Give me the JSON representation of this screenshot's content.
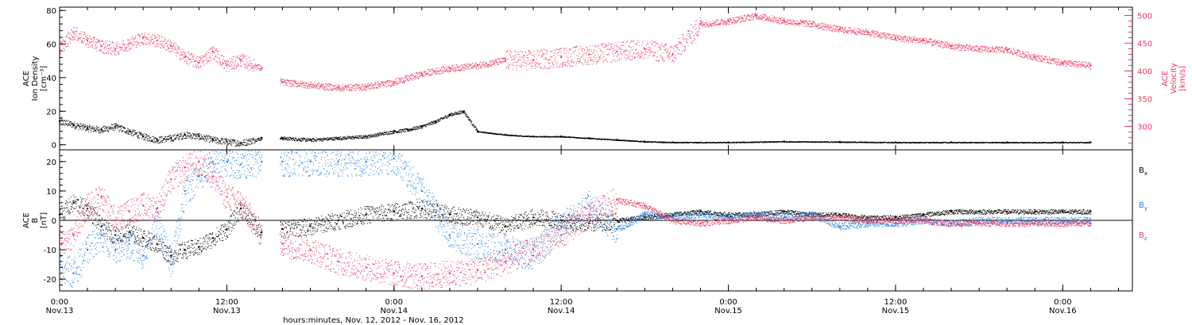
{
  "colors": {
    "black": "#000000",
    "blue": "#1f7fe0",
    "pink": "#e8385f",
    "axis": "#000000"
  },
  "panel1": {
    "ylabel_lines": [
      "ACE",
      "Ion Density",
      "[cm⁻³]"
    ],
    "right_ylabel_lines": [
      "ACE",
      "Velocity",
      "[km/s]"
    ],
    "left_ticks": [
      "0",
      "20",
      "40",
      "60",
      "80"
    ],
    "right_ticks": [
      "300",
      "350",
      "400",
      "450",
      "500"
    ]
  },
  "panel2": {
    "ylabel_lines": [
      "ACE",
      "B",
      "[nT]"
    ],
    "ticks": [
      "-20",
      "-10",
      "0",
      "10",
      "20"
    ],
    "legend": [
      {
        "name": "Bx",
        "base": "B",
        "sub": "x",
        "color": "#000000"
      },
      {
        "name": "By",
        "base": "B",
        "sub": "y",
        "color": "#1f7fe0"
      },
      {
        "name": "Bz",
        "base": "B",
        "sub": "z",
        "color": "#e8385f"
      }
    ]
  },
  "xaxis": {
    "ticks": [
      {
        "time": "0:00",
        "date": "Nov.13"
      },
      {
        "time": "12:00",
        "date": "Nov.13"
      },
      {
        "time": "0:00",
        "date": "Nov.14"
      },
      {
        "time": "12:00",
        "date": "Nov.14"
      },
      {
        "time": "0:00",
        "date": "Nov.15"
      },
      {
        "time": "12:00",
        "date": "Nov.15"
      },
      {
        "time": "0:00",
        "date": "Nov.16"
      }
    ],
    "title": "hours:minutes, Nov. 12, 2012 - Nov. 16, 2012"
  },
  "chart_data": [
    {
      "type": "scatter",
      "title": "",
      "xlabel": "hours:minutes, Nov. 12, 2012 - Nov. 16, 2012",
      "ylabel": "ACE Ion Density [cm⁻³]",
      "y2label": "ACE Velocity [km/s]",
      "x_unit": "hours since Nov.13 0:00",
      "xlim": [
        0,
        77
      ],
      "ylim": [
        -3,
        82
      ],
      "y2lim": [
        258,
        515
      ],
      "grid": false,
      "series": [
        {
          "name": "Ion Density",
          "axis": "left",
          "color": "#000000",
          "x": [
            0,
            1,
            2,
            3,
            4,
            5,
            6,
            7,
            8,
            9,
            10,
            11,
            12,
            13,
            14.5,
            16,
            18,
            20,
            22,
            24,
            25,
            26,
            27,
            28,
            29,
            30,
            32,
            34,
            36,
            38,
            40,
            42,
            44,
            48,
            52,
            56,
            60,
            64,
            68,
            72,
            74
          ],
          "y": [
            14,
            12,
            10,
            9,
            11,
            8,
            5,
            3,
            4,
            6,
            5,
            3,
            2,
            1,
            4,
            4,
            3,
            4,
            5,
            8,
            9,
            11,
            14,
            18,
            20,
            8,
            6,
            5,
            5,
            4,
            3,
            2,
            1.5,
            1.5,
            2,
            1.8,
            1.5,
            1.5,
            1.5,
            1.5,
            1.5
          ],
          "gaps_after_x": [
            14.5
          ]
        },
        {
          "name": "Velocity",
          "axis": "right",
          "color": "#e8385f",
          "x": [
            0,
            1,
            2,
            3,
            4,
            5,
            6,
            7,
            8,
            9,
            10,
            11,
            12,
            13,
            14.5,
            16,
            18,
            20,
            22,
            24,
            26,
            28,
            30,
            32,
            34,
            36,
            38,
            40,
            42,
            44,
            46,
            48,
            50,
            52,
            54,
            56,
            58,
            60,
            62,
            64,
            66,
            68,
            70,
            72,
            74
          ],
          "y": [
            440,
            470,
            455,
            445,
            440,
            450,
            460,
            455,
            445,
            425,
            415,
            435,
            410,
            420,
            405,
            380,
            375,
            370,
            372,
            380,
            395,
            405,
            410,
            420,
            420,
            425,
            430,
            435,
            440,
            430,
            485,
            490,
            500,
            490,
            485,
            475,
            470,
            460,
            455,
            445,
            440,
            438,
            425,
            415,
            410
          ],
          "gaps_after_x": [
            14.5
          ]
        }
      ]
    },
    {
      "type": "scatter",
      "title": "",
      "xlabel": "hours:minutes, Nov. 12, 2012 - Nov. 16, 2012",
      "ylabel": "ACE B [nT]",
      "x_unit": "hours since Nov.13 0:00",
      "xlim": [
        0,
        77
      ],
      "ylim": [
        -24,
        24
      ],
      "grid": false,
      "zero_line": true,
      "series": [
        {
          "name": "Bx",
          "color": "#000000",
          "x": [
            0,
            1,
            2,
            3,
            4,
            5,
            6,
            7,
            8,
            9,
            10,
            11,
            12,
            13,
            14.5,
            16,
            18,
            20,
            22,
            24,
            26,
            28,
            30,
            32,
            34,
            36,
            38,
            40,
            42,
            44,
            46,
            48,
            50,
            52,
            54,
            56,
            58,
            60,
            62,
            64,
            66,
            68,
            70,
            72,
            74
          ],
          "y": [
            2,
            6,
            4,
            -2,
            -5,
            -4,
            -6,
            -8,
            -12,
            -10,
            -9,
            -6,
            -3,
            4,
            -4,
            -3,
            -2,
            0,
            2,
            3,
            4,
            2,
            1,
            -2,
            1,
            0,
            -1,
            0,
            1,
            2,
            3,
            2,
            2,
            3,
            2,
            2,
            1,
            1,
            2,
            3,
            3,
            3,
            3,
            3,
            3
          ],
          "gaps_after_x": [
            14.5
          ]
        },
        {
          "name": "By",
          "color": "#1f7fe0",
          "x": [
            0,
            1,
            2,
            3,
            4,
            5,
            6,
            7,
            8,
            9,
            10,
            11,
            12,
            13,
            14.5,
            16,
            18,
            20,
            22,
            24,
            26,
            28,
            30,
            32,
            34,
            36,
            38,
            40,
            42,
            44,
            46,
            48,
            50,
            52,
            54,
            56,
            58,
            60,
            62,
            64,
            66,
            68,
            70,
            72,
            74
          ],
          "y": [
            -15,
            -18,
            -10,
            -5,
            -10,
            -8,
            -12,
            0,
            -15,
            10,
            15,
            20,
            20,
            19,
            20,
            20,
            20,
            20,
            20,
            21,
            10,
            -5,
            -8,
            -10,
            -12,
            -2,
            5,
            -3,
            2,
            1,
            2,
            1,
            2,
            1,
            2,
            -2,
            -1,
            -1,
            0,
            -1,
            0,
            0,
            0,
            0,
            0
          ],
          "gaps_after_x": [
            14.5
          ]
        },
        {
          "name": "Bz",
          "color": "#e8385f",
          "x": [
            0,
            1,
            2,
            3,
            4,
            5,
            6,
            7,
            8,
            9,
            10,
            11,
            12,
            13,
            14.5,
            16,
            18,
            20,
            22,
            24,
            26,
            28,
            30,
            32,
            34,
            36,
            38,
            40,
            42,
            44,
            46,
            48,
            50,
            52,
            54,
            56,
            58,
            60,
            62,
            64,
            66,
            68,
            70,
            72,
            74
          ],
          "y": [
            -8,
            -5,
            5,
            8,
            0,
            3,
            5,
            4,
            14,
            18,
            20,
            15,
            8,
            6,
            -5,
            -8,
            -10,
            -14,
            -16,
            -18,
            -19,
            -18,
            -17,
            -14,
            -10,
            -5,
            2,
            7,
            5,
            0,
            -1,
            0,
            1,
            0,
            1,
            1,
            0,
            0,
            0,
            -1,
            -1,
            -1,
            -1,
            -1,
            -1
          ],
          "gaps_after_x": [
            14.5
          ]
        }
      ]
    }
  ]
}
